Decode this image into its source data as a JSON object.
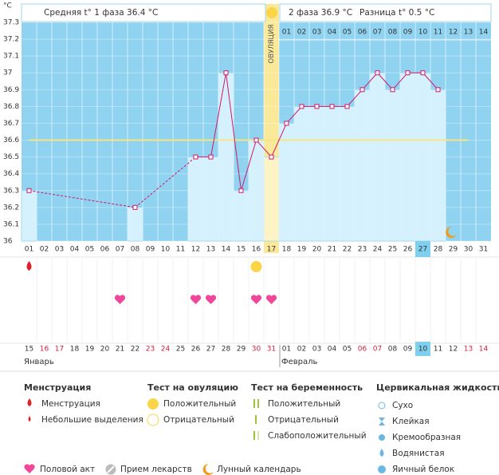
{
  "chart_data": {
    "type": "line",
    "y_unit": "°C",
    "phase1_text": "Средняя t° 1 фаза 36.4 °C",
    "phase2_text": "2 фаза 36.9 °C",
    "difference_text": "Разница t° 0.5 °C",
    "ovulation_label": "ОВУЛЯЦИЯ",
    "ovulation_index": 16,
    "today_index": 26,
    "coverline": 36.6,
    "ylim": [
      36,
      37.3
    ],
    "yticks": [
      36,
      36.1,
      36.2,
      36.3,
      36.4,
      36.5,
      36.6,
      36.7,
      36.8,
      36.9,
      37,
      37.1,
      37.2,
      37.3
    ],
    "grid": true,
    "categories": [
      "01",
      "02",
      "03",
      "04",
      "05",
      "06",
      "07",
      "08",
      "09",
      "10",
      "11",
      "12",
      "13",
      "14",
      "15",
      "16",
      "17",
      "18",
      "19",
      "20",
      "21",
      "22",
      "23",
      "24",
      "25",
      "26",
      "27",
      "28",
      "29",
      "30",
      "31"
    ],
    "values": [
      36.3,
      null,
      null,
      null,
      null,
      null,
      null,
      36.2,
      null,
      null,
      null,
      36.5,
      36.5,
      37,
      36.3,
      36.6,
      36.5,
      36.7,
      36.8,
      36.8,
      36.8,
      36.8,
      36.9,
      37,
      36.9,
      37,
      37,
      36.9,
      null,
      null,
      null
    ],
    "phase2_days": [
      "01",
      "02",
      "03",
      "04",
      "05",
      "06",
      "07",
      "08",
      "09",
      "10",
      "11",
      "12",
      "13",
      "14"
    ],
    "phase2_start_index": 17,
    "line_color": "#d2176a",
    "menstruation_days": [
      0
    ],
    "ovulation_test_positive_days": [
      15
    ],
    "intercourse_days": [
      6,
      11,
      12,
      15,
      16
    ],
    "moon_day": 28,
    "dates": [
      "15",
      "16",
      "17",
      "18",
      "19",
      "20",
      "21",
      "22",
      "23",
      "24",
      "25",
      "26",
      "27",
      "28",
      "29",
      "30",
      "31",
      "01",
      "02",
      "03",
      "04",
      "05",
      "06",
      "07",
      "08",
      "09",
      "10",
      "11",
      "12",
      "13",
      "14"
    ],
    "weekends": [
      false,
      true,
      true,
      false,
      false,
      false,
      false,
      false,
      true,
      true,
      false,
      false,
      false,
      false,
      false,
      true,
      true,
      false,
      false,
      false,
      false,
      false,
      true,
      true,
      false,
      false,
      false,
      false,
      false,
      true,
      true
    ],
    "months": [
      {
        "name": "Январь",
        "first_date_index": 0
      },
      {
        "name": "Февраль",
        "first_date_index": 17
      }
    ],
    "legend": {
      "menstruation": {
        "title": "Менструация",
        "items": [
          "Менструация",
          "Небольшие выделения"
        ]
      },
      "ovulation_test": {
        "title": "Тест на овуляцию",
        "items": [
          "Положительный",
          "Отрицательный"
        ]
      },
      "pregnancy_test": {
        "title": "Тест на беременность",
        "items": [
          "Положительный",
          "Отрицательный",
          "Слабоположительный"
        ]
      },
      "cervical": {
        "title": "Цервикальная жидкость",
        "items": [
          "Сухо",
          "Клейкая",
          "Кремообразная",
          "Водянистая",
          "Яичный белок"
        ]
      },
      "other": [
        "Половой акт",
        "Прием лекарств",
        "Лунный календарь"
      ]
    }
  }
}
